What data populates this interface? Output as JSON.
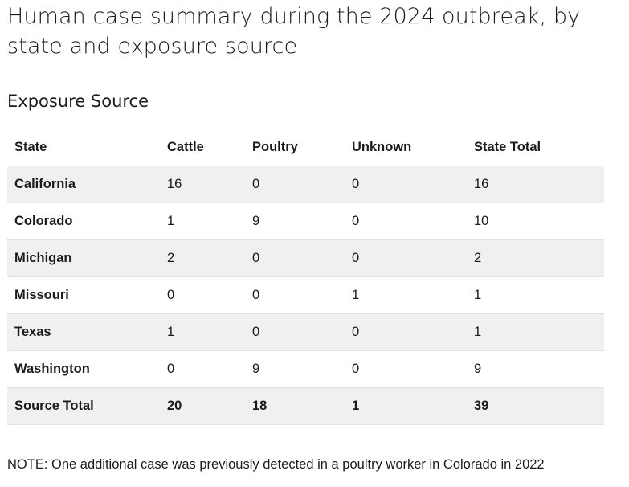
{
  "title": "Human case summary during the 2024 outbreak, by state and exposure source",
  "section_heading": "Exposure Source",
  "table": {
    "headers": [
      "State",
      "Cattle",
      "Poultry",
      "Unknown",
      "State Total"
    ],
    "rows": [
      {
        "state": "California",
        "cattle": "16",
        "poultry": "0",
        "unknown": "0",
        "total": "16"
      },
      {
        "state": "Colorado",
        "cattle": "1",
        "poultry": "9",
        "unknown": "0",
        "total": "10"
      },
      {
        "state": "Michigan",
        "cattle": "2",
        "poultry": "0",
        "unknown": "0",
        "total": "2"
      },
      {
        "state": "Missouri",
        "cattle": "0",
        "poultry": "0",
        "unknown": "1",
        "total": "1"
      },
      {
        "state": "Texas",
        "cattle": "1",
        "poultry": "0",
        "unknown": "0",
        "total": "1"
      },
      {
        "state": "Washington",
        "cattle": "0",
        "poultry": "9",
        "unknown": "0",
        "total": "9"
      }
    ],
    "totals": {
      "label": "Source Total",
      "cattle": "20",
      "poultry": "18",
      "unknown": "1",
      "total": "39"
    }
  },
  "note": "NOTE: One additional case was previously detected in a poultry worker in Colorado in 2022"
}
